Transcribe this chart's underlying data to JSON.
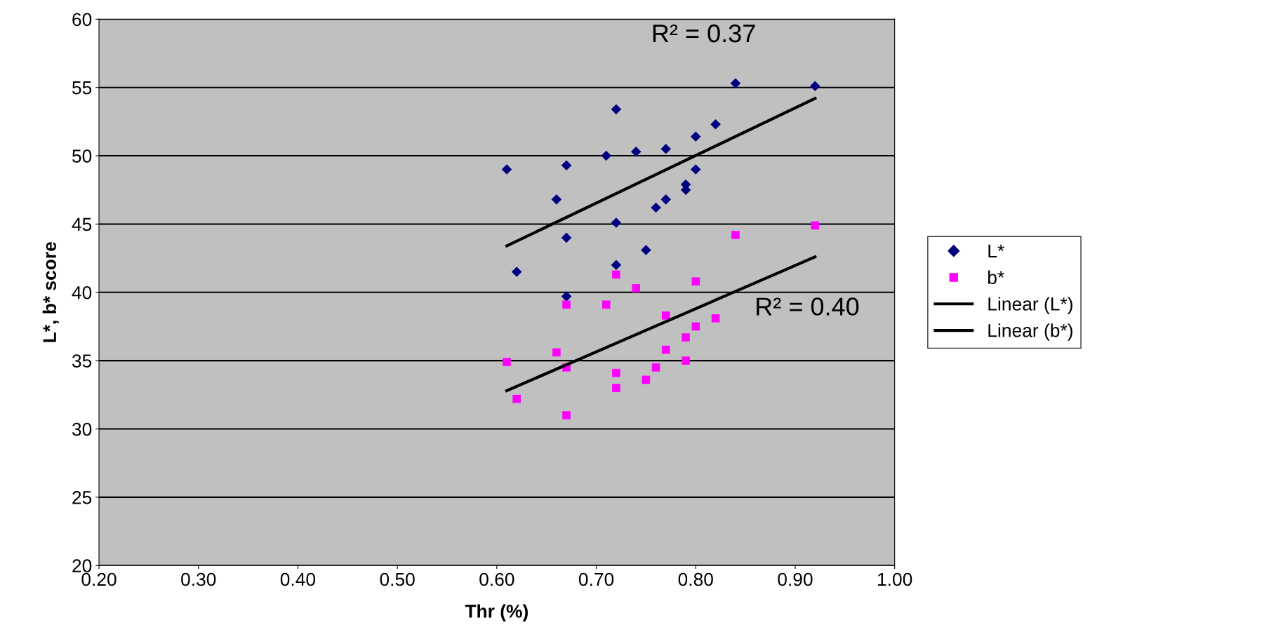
{
  "chart_data": {
    "type": "scatter",
    "xlabel": "Thr (%)",
    "ylabel": "L*, b* score",
    "xlim": [
      0.2,
      1.0
    ],
    "xticks": [
      {
        "value": 0.2,
        "label": "0.20"
      },
      {
        "value": 0.3,
        "label": "0.30"
      },
      {
        "value": 0.4,
        "label": "0.40"
      },
      {
        "value": 0.5,
        "label": "0.50"
      },
      {
        "value": 0.6,
        "label": "0.60"
      },
      {
        "value": 0.7,
        "label": "0.70"
      },
      {
        "value": 0.8,
        "label": "0.80"
      },
      {
        "value": 0.9,
        "label": "0.90"
      },
      {
        "value": 1.0,
        "label": "1.00"
      }
    ],
    "ylim": [
      20,
      60
    ],
    "yticks": [
      20,
      25,
      30,
      35,
      40,
      45,
      50,
      55,
      60
    ],
    "grid": "y",
    "legend": "right",
    "series": [
      {
        "name": "L*",
        "marker": "diamond",
        "color": "#000080",
        "x": [
          0.61,
          0.62,
          0.66,
          0.67,
          0.67,
          0.67,
          0.71,
          0.72,
          0.72,
          0.72,
          0.74,
          0.75,
          0.76,
          0.77,
          0.77,
          0.79,
          0.79,
          0.8,
          0.8,
          0.82,
          0.84,
          0.92
        ],
        "values": [
          49.0,
          41.5,
          46.8,
          49.3,
          44.0,
          39.7,
          50.0,
          53.4,
          45.1,
          42.0,
          50.3,
          43.1,
          46.2,
          50.5,
          46.8,
          47.9,
          47.5,
          51.4,
          49.0,
          52.3,
          55.3,
          55.1
        ]
      },
      {
        "name": "b*",
        "marker": "square",
        "color": "#ff00ff",
        "x": [
          0.61,
          0.62,
          0.66,
          0.67,
          0.67,
          0.67,
          0.71,
          0.72,
          0.72,
          0.72,
          0.74,
          0.75,
          0.76,
          0.77,
          0.77,
          0.79,
          0.79,
          0.8,
          0.8,
          0.82,
          0.84,
          0.92
        ],
        "values": [
          34.9,
          32.2,
          35.6,
          39.1,
          34.5,
          31.0,
          39.1,
          41.3,
          34.1,
          33.0,
          40.3,
          33.6,
          34.5,
          38.3,
          35.8,
          36.7,
          35.0,
          40.8,
          37.5,
          38.1,
          44.2,
          44.9
        ]
      },
      {
        "name": "Linear (L*)",
        "type": "line",
        "line_style": "solid",
        "color": "#000000",
        "x": [
          0.61,
          0.92
        ],
        "values": [
          43.4,
          54.2
        ]
      },
      {
        "name": "Linear (b*)",
        "type": "line",
        "line_style": "solid",
        "color": "#000000",
        "x": [
          0.61,
          0.92
        ],
        "values": [
          32.8,
          42.6
        ]
      }
    ],
    "annotations": [
      "R² = 0.37",
      "R² = 0.40"
    ]
  }
}
